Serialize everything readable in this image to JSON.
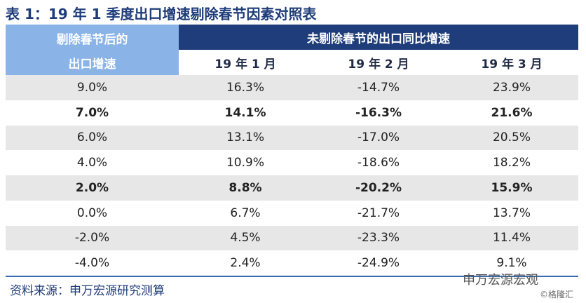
{
  "header": {
    "title": "表 1：19 年 1 季度出口增速剔除春节因素对照表",
    "left_lines": [
      "剔除春节后的",
      "出口增速"
    ],
    "group": "未剔除春节的出口同比增速",
    "columns": [
      "19 年 1 月",
      "19 年 2 月",
      "19 年 3 月"
    ]
  },
  "table": {
    "rows": [
      {
        "cells": [
          "9.0%",
          "16.3%",
          "-14.7%",
          "23.9%"
        ],
        "bold": false
      },
      {
        "cells": [
          "7.0%",
          "14.1%",
          "-16.3%",
          "21.6%"
        ],
        "bold": true
      },
      {
        "cells": [
          "6.0%",
          "13.1%",
          "-17.0%",
          "20.5%"
        ],
        "bold": false
      },
      {
        "cells": [
          "4.0%",
          "10.9%",
          "-18.6%",
          "18.2%"
        ],
        "bold": false
      },
      {
        "cells": [
          "2.0%",
          "8.8%",
          "-20.2%",
          "15.9%"
        ],
        "bold": true
      },
      {
        "cells": [
          "0.0%",
          "6.7%",
          "-21.7%",
          "13.7%"
        ],
        "bold": false
      },
      {
        "cells": [
          "-2.0%",
          "4.5%",
          "-23.3%",
          "11.4%"
        ],
        "bold": false
      },
      {
        "cells": [
          "-4.0%",
          "2.4%",
          "-24.9%",
          "9.1%"
        ],
        "bold": false
      }
    ]
  },
  "footer": {
    "source": "资料来源：申万宏源研究测算",
    "watermark": "申万宏源宏观",
    "credit": "©格隆汇"
  }
}
